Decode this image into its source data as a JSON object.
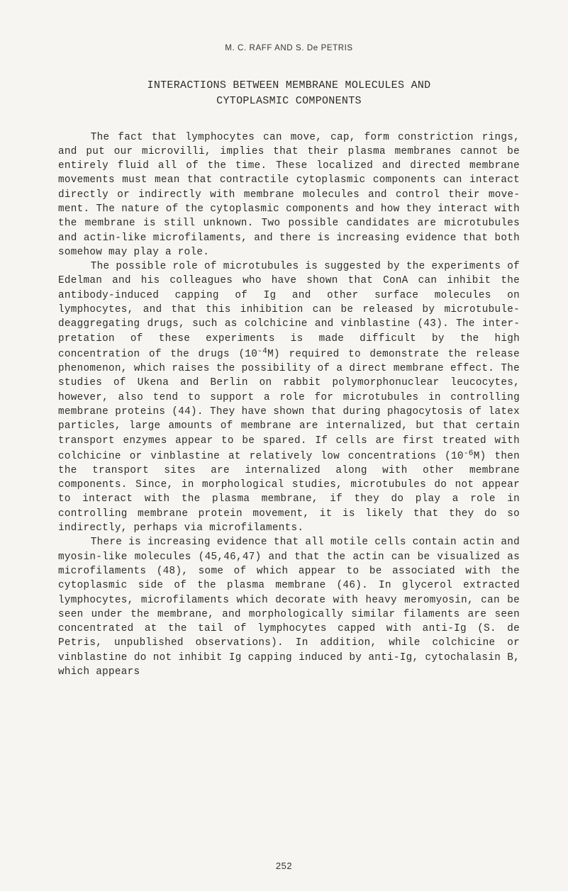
{
  "colors": {
    "page_bg": "#f7f5f1",
    "text": "#2b2b2b",
    "head_text": "#333333"
  },
  "typography": {
    "body_family": "Courier New, monospace",
    "body_size_pt": 10.5,
    "head_family": "Arial, sans-serif",
    "head_size_pt": 8.5,
    "line_height": 1.42
  },
  "running_head": "M. C. RAFF AND S. De PETRIS",
  "title": {
    "line1": "INTERACTIONS BETWEEN MEMBRANE MOLECULES AND",
    "line2": "CYTOPLASMIC COMPONENTS"
  },
  "paragraphs": {
    "p1": "The fact that lymphocytes can move, cap, form constric­tion rings, and put our microvilli, implies that their plasma membranes cannot be entirely fluid all of the time. These localized and directed membrane movements must mean that contractile cytoplasmic components can interact directly or indirectly with membrane molecules and control their move­ment. The nature of the cytoplasmic components and how they interact with the membrane is still unknown. Two possible candidates are microtubules and actin-like microfilaments, and there is increasing evidence that both somehow may play a role.",
    "p2a": "The possible role of microtubules is suggested by the experiments of Edelman and his colleagues who have shown that ConA can inhibit the antibody-induced capping of Ig and other surface molecules on lymphocytes, and that this inhibition can be released by microtubule-deaggregating drugs, such as colchicine and vinblastine (43). The inter­pretation of these experiments is made difficult by the high concentration of the drugs (10",
    "p2b": "M) required to demonstrate the release phenomenon, which raises the possibility of a direct membrane effect. The studies of Ukena and Berlin on rabbit polymorphonuclear leucocytes, however, also tend to support a role for microtubules in controlling membrane proteins (44). They have shown that during phagocytosis of latex particles, large amounts of membrane are internalized, but that certain transport enzymes appear to be spared. If cells are first treated with colchicine or vinblastine at relatively low concentrations (10",
    "p2c": "M) then the transport sites are internalized along with other membrane components. Since, in morphological studies, microtubules do not appear to interact with the plasma membrane, if they do play a role in controlling membrane protein movement, it is likely that they do so indirectly, perhaps via microfilaments.",
    "p3": "There is increasing evidence that all motile cells contain actin and myosin-like molecules (45,46,47) and that the actin can be visualized as microfilaments (48), some of which appear to be associated with the cytoplasmic side of the plasma membrane (46). In glycerol extracted lymphocytes, microfilaments which decorate with heavy meromyosin, can be seen under the membrane, and morphologically similar fila­ments are seen concentrated at the tail of lymphocytes capped with anti-Ig (S. de Petris, unpublished observations). In addition, while colchicine or vinblastine do not inhibit Ig capping induced by anti-Ig, cytochalasin B, which appears",
    "exp1": "-4",
    "exp2": "-6"
  },
  "page_number": "252"
}
